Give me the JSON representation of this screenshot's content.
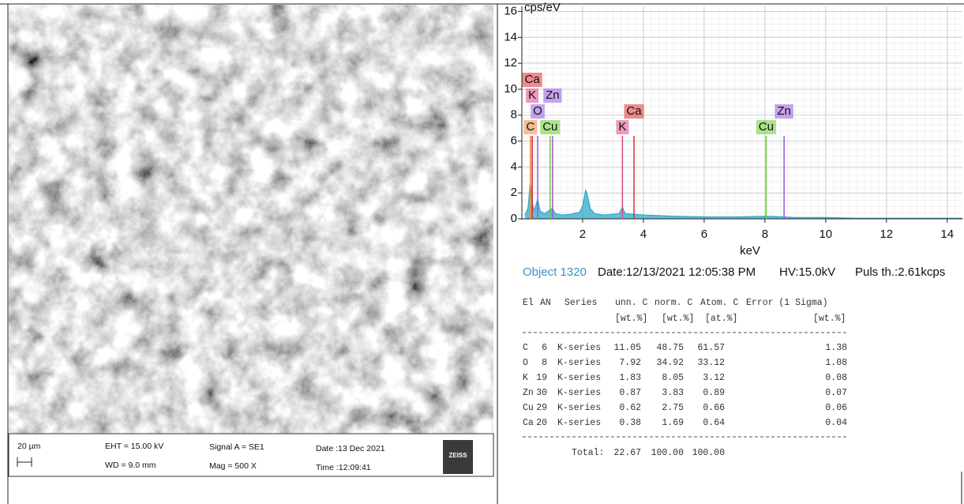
{
  "sem": {
    "scale": "20 µm",
    "eht": "EHT = 15.00 kV",
    "wd": "WD = 9.0 mm",
    "signal": "Signal A = SE1",
    "mag": "Mag =  500 X",
    "date": "Date :13 Dec 2021",
    "time": "Time :12:09:41",
    "logo": "ZEISS"
  },
  "chart_data": {
    "type": "area",
    "y_label": "cps/eV",
    "x_label": "keV",
    "color": "#2fa9c9",
    "x": [
      0.1,
      0.2,
      0.28,
      0.35,
      0.4,
      0.52,
      0.6,
      0.75,
      0.93,
      1.01,
      1.1,
      1.3,
      1.6,
      1.9,
      2.0,
      2.1,
      2.15,
      2.25,
      2.4,
      2.7,
      3.2,
      3.31,
      3.4,
      3.69,
      4.0,
      5,
      6,
      7,
      8.04,
      8.63,
      9,
      10,
      11,
      12,
      13,
      14.5
    ],
    "values": [
      0.3,
      0.8,
      2.8,
      1.2,
      0.6,
      1.5,
      0.6,
      0.4,
      0.7,
      0.8,
      0.4,
      0.3,
      0.35,
      0.5,
      1.0,
      2.2,
      1.9,
      0.8,
      0.4,
      0.3,
      0.4,
      0.9,
      0.4,
      0.35,
      0.3,
      0.2,
      0.15,
      0.15,
      0.2,
      0.15,
      0.1,
      0.1,
      0.05,
      0.05,
      0.05,
      0.05
    ],
    "xlim": [
      0,
      14.5
    ],
    "ylim": [
      0,
      16.4
    ],
    "xticks": [
      2,
      4,
      6,
      8,
      10,
      12,
      14
    ],
    "yticks": [
      0,
      2,
      4,
      6,
      8,
      10,
      12,
      14,
      16
    ],
    "grid": true,
    "element_lines": [
      {
        "label": "C",
        "x": 0.28,
        "height": 6.4,
        "color": "#f08a3c"
      },
      {
        "label": "Cu",
        "x": 0.93,
        "height": 6.4,
        "color": "#66cc33"
      },
      {
        "label": "K",
        "x": 3.31,
        "height": 6.4,
        "color": "#e0488a"
      },
      {
        "label": "Cu",
        "x": 8.04,
        "height": 6.4,
        "color": "#66cc33"
      },
      {
        "label": "O",
        "x": 0.52,
        "height": 6.4,
        "color": "#9b59e0"
      },
      {
        "label": "Zn",
        "x": 1.01,
        "height": 6.4,
        "color": "#9b59e0"
      },
      {
        "label": "Ca",
        "x": 3.69,
        "height": 6.4,
        "color": "#e03030"
      },
      {
        "label": "Zn",
        "x": 8.63,
        "height": 6.4,
        "color": "#9b59e0"
      },
      {
        "label": "K",
        "x": 0.34,
        "height": 6.4,
        "color": "#e0488a"
      },
      {
        "label": "Ca",
        "x": 0.34,
        "height": 6.4,
        "color": "#e03030"
      }
    ]
  },
  "spectrum_info": {
    "object": "Object 1320",
    "date": "Date:12/13/2021 12:05:38 PM",
    "hv": "HV:15.0kV",
    "pulse": "Puls th.:2.61kcps"
  },
  "table": {
    "columns": [
      "El",
      "AN",
      "Series",
      "unn. C",
      "norm. C",
      "Atom. C",
      "Error (1 Sigma)"
    ],
    "units": [
      "[wt.%]",
      "[wt.%]",
      "[at.%]",
      "[wt.%]"
    ],
    "rows": [
      [
        "C",
        6,
        "K-series",
        11.05,
        48.75,
        61.57,
        1.38
      ],
      [
        "O",
        8,
        "K-series",
        7.92,
        34.92,
        33.12,
        1.08
      ],
      [
        "K",
        19,
        "K-series",
        1.83,
        8.05,
        3.12,
        0.08
      ],
      [
        "Zn",
        30,
        "K-series",
        0.87,
        3.83,
        0.89,
        0.07
      ],
      [
        "Cu",
        29,
        "K-series",
        0.62,
        2.75,
        0.66,
        0.06
      ],
      [
        "Ca",
        20,
        "K-series",
        0.38,
        1.69,
        0.64,
        0.04
      ]
    ],
    "total": [
      "Total:",
      22.67,
      "100.00",
      "100.00"
    ]
  }
}
